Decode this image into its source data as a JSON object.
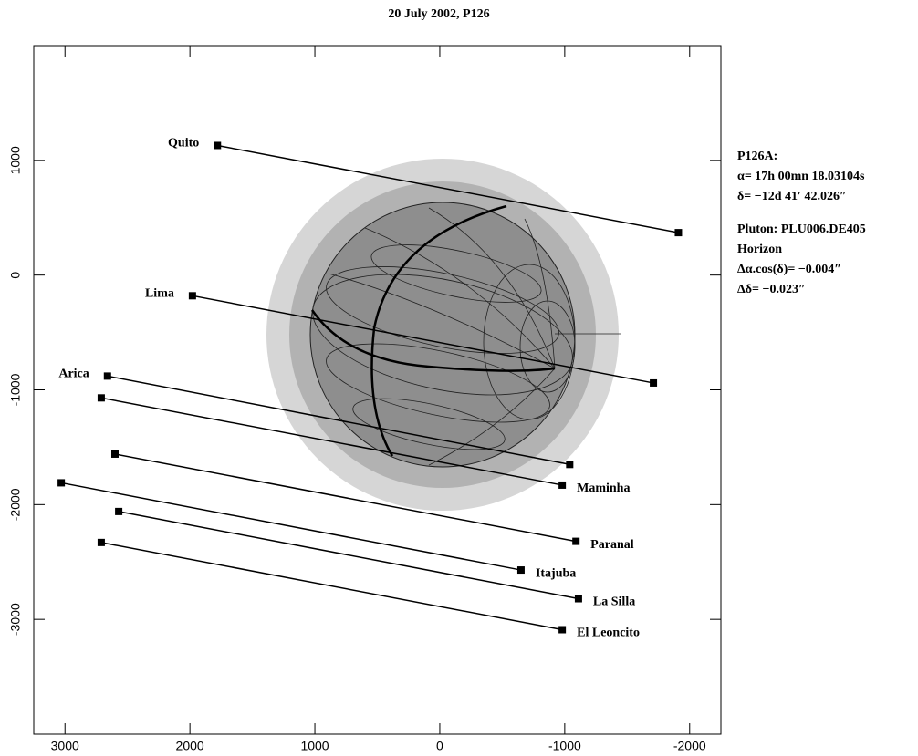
{
  "chart_data": {
    "type": "line",
    "title": "20 July 2002, P126",
    "xlim": [
      3250,
      -2250
    ],
    "ylim": [
      -4000,
      2000
    ],
    "xticks": [
      3000,
      2000,
      1000,
      0,
      -1000,
      -2000
    ],
    "yticks": [
      1000,
      0,
      -1000,
      -2000,
      -3000
    ],
    "color": "#000000",
    "series": [
      {
        "name": "Quito",
        "x": [
          1780,
          -1910
        ],
        "values": [
          1130,
          370
        ]
      },
      {
        "name": "Lima",
        "x": [
          1980,
          -1710
        ],
        "values": [
          -180,
          -940
        ]
      },
      {
        "name": "Arica",
        "x": [
          2660,
          -1040
        ],
        "values": [
          -880,
          -1650
        ]
      },
      {
        "name": "Maminha",
        "x": [
          2710,
          -980
        ],
        "values": [
          -1070,
          -1830
        ]
      },
      {
        "name": "Paranal",
        "x": [
          2600,
          -1090
        ],
        "values": [
          -1560,
          -2320
        ]
      },
      {
        "name": "Itajuba",
        "x": [
          3030,
          -650
        ],
        "values": [
          -1810,
          -2570
        ]
      },
      {
        "name": "La Silla",
        "x": [
          2570,
          -1110
        ],
        "values": [
          -2060,
          -2820
        ]
      },
      {
        "name": "El Leoncito",
        "x": [
          2710,
          -980
        ],
        "values": [
          -2330,
          -3090
        ]
      }
    ],
    "annotations": [
      "P126A:",
      "α= 17h 00mn 18.03104s",
      "δ= −12d 41′ 42.026″",
      "Pluton: PLU006.DE405",
      "Horizon",
      "Δα.cos(δ)= −0.004″",
      "Δδ= −0.023″"
    ]
  }
}
